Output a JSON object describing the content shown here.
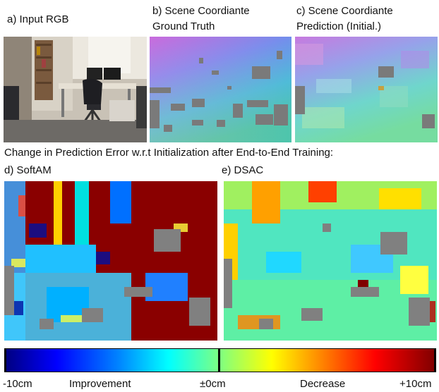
{
  "panels": {
    "a": {
      "label": "a) Input RGB"
    },
    "b": {
      "label_line1": "b) Scene Coordiante",
      "label_line2": "Ground Truth"
    },
    "c": {
      "label_line1": "c) Scene Coordiante",
      "label_line2": "Prediction (Initial.)"
    },
    "d": {
      "label": "d) SoftAM"
    },
    "e": {
      "label": "e) DSAC"
    }
  },
  "caption": "Change in Prediction Error w.r.t Initialization after End-to-End Training:",
  "colorbar": {
    "min_label": "-10cm",
    "left_label": "Improvement",
    "mid_label": "±0cm",
    "right_label": "Decrease",
    "max_label": "+10cm"
  },
  "colors": {
    "jet_dark_blue": "#00007f",
    "jet_cyan": "#00ffff",
    "jet_yellow": "#ffff00",
    "jet_dark_red": "#7f0000",
    "invalid_gray": "#808080"
  }
}
